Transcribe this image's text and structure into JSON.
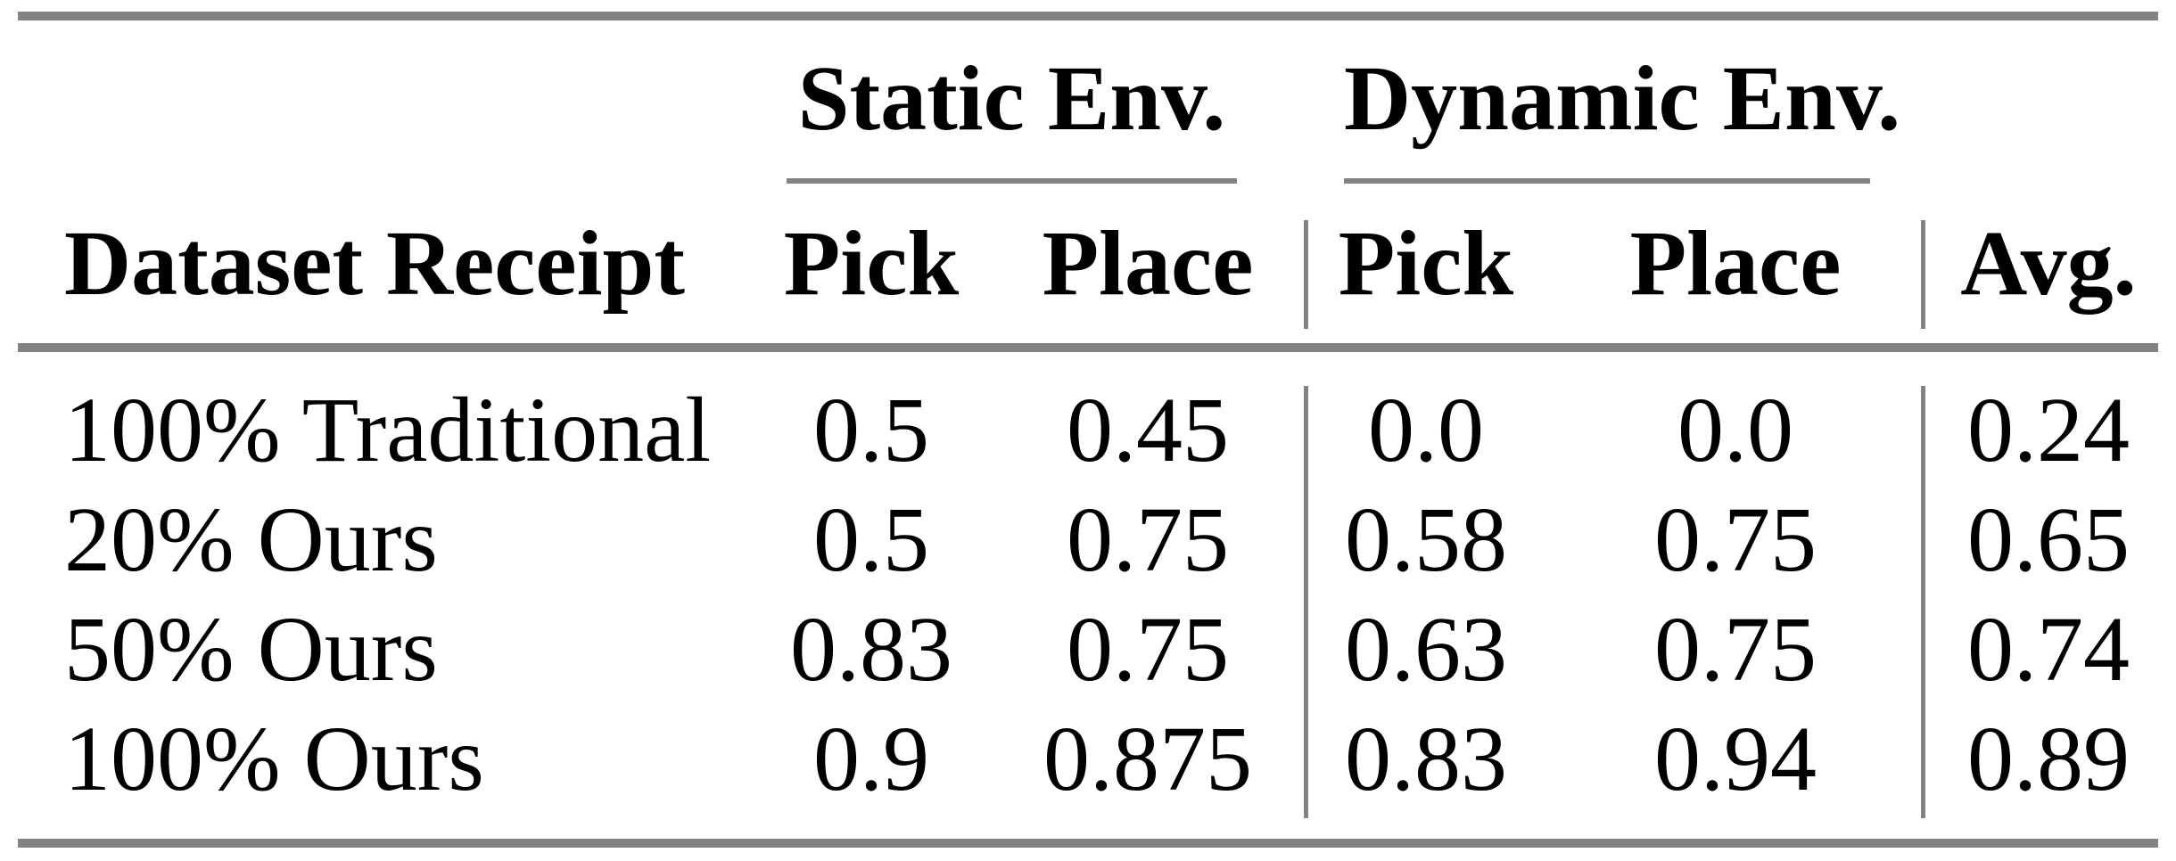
{
  "page": {
    "background": "#ffffff",
    "text_color": "#000000",
    "rule_color": "#828282"
  },
  "table": {
    "row_header_label": "Dataset Receipt",
    "group_headers": [
      {
        "label": "Static Env."
      },
      {
        "label": "Dynamic Env."
      }
    ],
    "column_headers": [
      "Pick",
      "Place",
      "Pick",
      "Place"
    ],
    "avg_header": "Avg.",
    "rows": [
      {
        "label": "100% Traditional",
        "values": [
          "0.5",
          "0.45",
          "0.0",
          "0.0",
          "0.24"
        ]
      },
      {
        "label": "20% Ours",
        "values": [
          "0.5",
          "0.75",
          "0.58",
          "0.75",
          "0.65"
        ]
      },
      {
        "label": "50% Ours",
        "values": [
          "0.83",
          "0.75",
          "0.63",
          "0.75",
          "0.74"
        ]
      },
      {
        "label": "100% Ours",
        "values": [
          "0.9",
          "0.875",
          "0.83",
          "0.94",
          "0.89"
        ]
      }
    ]
  },
  "chart_data": {
    "type": "table",
    "columns": [
      "Dataset Receipt",
      "Static Env. Pick",
      "Static Env. Place",
      "Dynamic Env. Pick",
      "Dynamic Env. Place",
      "Avg."
    ],
    "rows": [
      [
        "100% Traditional",
        0.5,
        0.45,
        0.0,
        0.0,
        0.24
      ],
      [
        "20% Ours",
        0.5,
        0.75,
        0.58,
        0.75,
        0.65
      ],
      [
        "50% Ours",
        0.83,
        0.75,
        0.63,
        0.75,
        0.74
      ],
      [
        "100% Ours",
        0.9,
        0.875,
        0.83,
        0.94,
        0.89
      ]
    ]
  }
}
